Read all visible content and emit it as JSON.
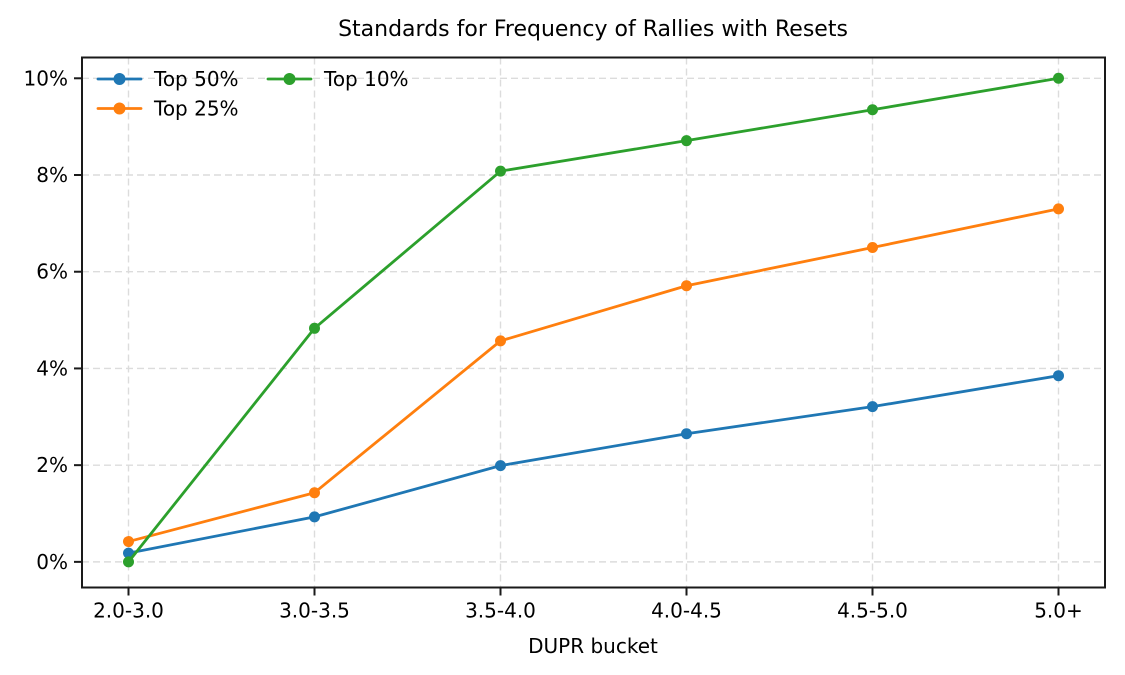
{
  "figure": {
    "background": "#ffffff"
  },
  "chart_data": {
    "type": "line",
    "title": "Standards for Frequency of Rallies with Resets",
    "xlabel": "DUPR bucket",
    "ylabel": "",
    "categories": [
      "2.0-3.0",
      "3.0-3.5",
      "3.5-4.0",
      "4.0-4.5",
      "4.5-5.0",
      "5.0+"
    ],
    "series": [
      {
        "name": "Top 50%",
        "color": "#1f77b4",
        "values": [
          0.18,
          0.93,
          1.99,
          2.65,
          3.21,
          3.85
        ]
      },
      {
        "name": "Top 25%",
        "color": "#ff7f0e",
        "values": [
          0.42,
          1.43,
          4.57,
          5.71,
          6.5,
          7.3
        ]
      },
      {
        "name": "Top 10%",
        "color": "#2ca02c",
        "values": [
          0.0,
          4.83,
          8.08,
          8.71,
          9.35,
          10.0
        ]
      }
    ],
    "ylim": [
      -0.53,
      10.43
    ],
    "yticks": [
      {
        "value": 0,
        "label": "0%"
      },
      {
        "value": 2,
        "label": "2%"
      },
      {
        "value": 4,
        "label": "4%"
      },
      {
        "value": 6,
        "label": "6%"
      },
      {
        "value": 8,
        "label": "8%"
      },
      {
        "value": 10,
        "label": "10%"
      }
    ],
    "grid": true,
    "grid_style": "dashed",
    "legend_position": "upper-left",
    "legend_columns": 2,
    "axis_color": "#1a1a1a",
    "grid_color": "#dcdcdc",
    "text_color": "#000000"
  }
}
